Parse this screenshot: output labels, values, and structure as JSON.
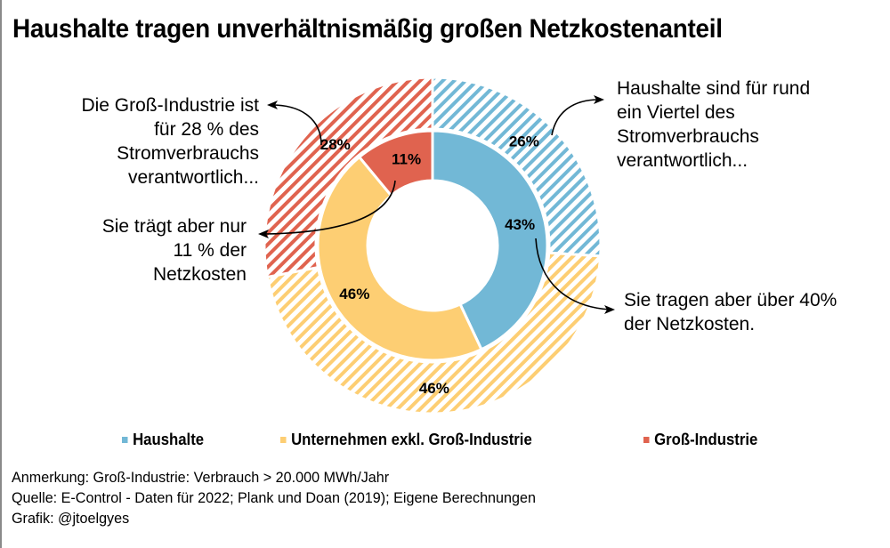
{
  "title": "Haushalte tragen unverhältnismäßig großen Netzkostenanteil",
  "colors": {
    "haushalte": "#72B8D6",
    "unternehmen": "#FDCE73",
    "gross_industrie": "#E0634F"
  },
  "chart_data": {
    "type": "pie",
    "variant": "nested-donut",
    "title": "Haushalte tragen unverhältnismäßig großen Netzkostenanteil",
    "categories": [
      "Haushalte",
      "Unternehmen exkl. Groß-Industrie",
      "Groß-Industrie"
    ],
    "series": [
      {
        "name": "Netzkosten",
        "ring": "inner",
        "style": "solid",
        "values": [
          43,
          46,
          11
        ],
        "labels": [
          "43%",
          "46%",
          "11%"
        ]
      },
      {
        "name": "Stromverbrauch",
        "ring": "outer",
        "style": "hatched",
        "values": [
          26,
          46,
          28
        ],
        "labels": [
          "26%",
          "46%",
          "28%"
        ]
      }
    ],
    "start": "top",
    "direction": "clockwise",
    "legend": {
      "position": "bottom",
      "entries": [
        "Haushalte",
        "Unternehmen exkl. Groß-Industrie",
        "Groß-Industrie"
      ]
    }
  },
  "annotations": {
    "industry_consumption": [
      "Die Groß-Industrie ist",
      "für 28 % des",
      "Stromverbrauchs",
      "verantwortlich..."
    ],
    "industry_costs": [
      "Sie trägt aber nur",
      "11 % der",
      "Netzkosten"
    ],
    "households_consumption": [
      "Haushalte sind für rund",
      "ein Viertel des",
      "Stromverbrauchs",
      "verantwortlich..."
    ],
    "households_costs": [
      "Sie tragen aber über 40%",
      "der Netzkosten."
    ]
  },
  "legend": [
    {
      "label": "Haushalte",
      "color": "#72B8D6"
    },
    {
      "label": "Unternehmen exkl. Groß-Industrie",
      "color": "#FDCE73"
    },
    {
      "label": "Groß-Industrie",
      "color": "#E0634F"
    }
  ],
  "footer": {
    "note": "Anmerkung: Groß-Industrie: Verbrauch > 20.000 MWh/Jahr",
    "source": "Quelle: E-Control - Daten für 2022; Plank und Doan (2019); Eigene Berechnungen",
    "credit": "Grafik: @jtoelgyes"
  }
}
